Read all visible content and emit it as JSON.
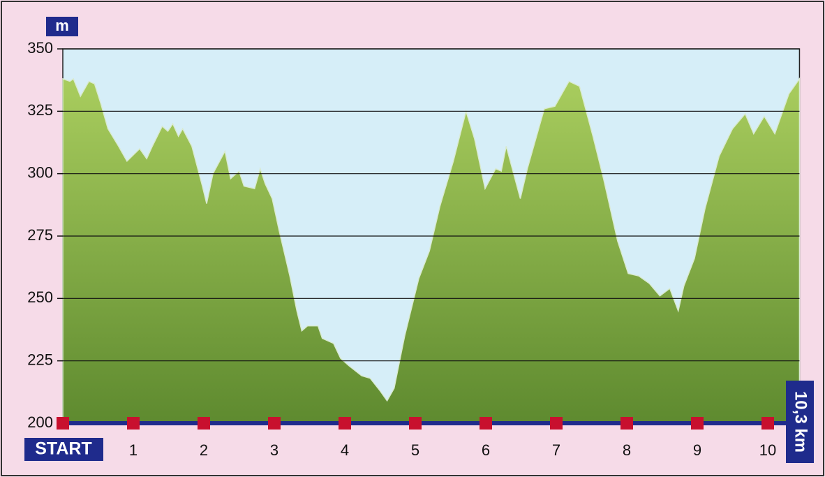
{
  "chart_data": {
    "type": "area",
    "y_unit": "m",
    "distance_label": "10,3 km",
    "x": [
      0,
      0.1,
      0.15,
      0.25,
      0.37,
      0.45,
      0.54,
      0.64,
      0.79,
      0.91,
      1.09,
      1.19,
      1.27,
      1.41,
      1.49,
      1.56,
      1.64,
      1.7,
      1.83,
      1.98,
      2.04,
      2.13,
      2.3,
      2.38,
      2.5,
      2.57,
      2.72,
      2.8,
      2.87,
      2.97,
      3.07,
      3.22,
      3.32,
      3.39,
      3.47,
      3.62,
      3.68,
      3.84,
      3.94,
      4.06,
      4.24,
      4.36,
      4.5,
      4.6,
      4.7,
      4.85,
      5.05,
      5.2,
      5.35,
      5.54,
      5.72,
      5.84,
      5.99,
      6.14,
      6.22,
      6.29,
      6.49,
      6.59,
      6.83,
      6.98,
      7.18,
      7.33,
      7.52,
      7.67,
      7.87,
      8.02,
      8.17,
      8.32,
      8.47,
      8.61,
      8.73,
      8.81,
      8.96,
      9.11,
      9.31,
      9.5,
      9.68,
      9.8,
      9.95,
      10.1,
      10.3,
      10.45
    ],
    "values": [
      338,
      337,
      338,
      331,
      337,
      336,
      328,
      318,
      311,
      305,
      310,
      306,
      311,
      319,
      317,
      320,
      315,
      318,
      311,
      295,
      288,
      300,
      309,
      298,
      301,
      295,
      294,
      302,
      296,
      290,
      277,
      259,
      245,
      237,
      239,
      239,
      234,
      232,
      226,
      223,
      219,
      218,
      213,
      209,
      214,
      235,
      258,
      269,
      287,
      305,
      325,
      314,
      294,
      302,
      301,
      311,
      290,
      302,
      326,
      327,
      337,
      335,
      315,
      298,
      273,
      260,
      259,
      256,
      251,
      254,
      245,
      255,
      266,
      286,
      307,
      318,
      324,
      316,
      323,
      316,
      332,
      338
    ],
    "xlim": [
      0,
      10.45
    ],
    "ylim": [
      200,
      350
    ],
    "xticks": [
      {
        "value": 0,
        "label": "START"
      },
      1,
      2,
      3,
      4,
      5,
      6,
      7,
      8,
      9,
      10
    ],
    "yticks": [
      200,
      225,
      250,
      275,
      300,
      325,
      350
    ],
    "grid": true,
    "colors": {
      "plot": "#d6eef8",
      "area_top": "#a9cd5e",
      "area_bottom": "#5e8a2f",
      "baseline": "#1f2b8c",
      "marker": "#c8102e",
      "label_box": "#1f2b8c"
    }
  }
}
